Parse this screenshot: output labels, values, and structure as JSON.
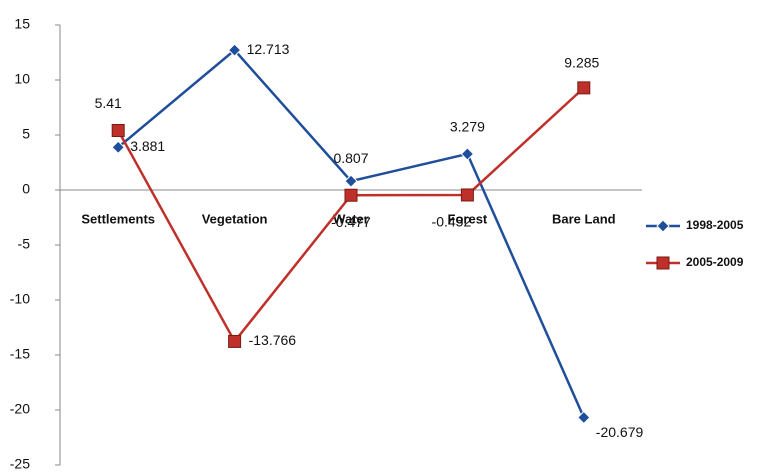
{
  "chart_data": {
    "type": "line",
    "categories": [
      "Settlements",
      "Vegetation",
      "Water",
      "Forest",
      "Bare Land"
    ],
    "series": [
      {
        "name": "1998-2005",
        "color": "#1f4e9a",
        "marker": "diamond",
        "values": [
          3.881,
          12.713,
          0.807,
          3.279,
          -20.679
        ]
      },
      {
        "name": "2005-2009",
        "color": "#c0302a",
        "marker": "square",
        "values": [
          5.41,
          -13.766,
          -0.477,
          -0.452,
          9.285
        ]
      }
    ],
    "ylim": [
      -25,
      15
    ],
    "yticks": [
      -25,
      -20,
      -15,
      -10,
      -5,
      0,
      5,
      10,
      15
    ],
    "grid": false,
    "legend": "right"
  }
}
